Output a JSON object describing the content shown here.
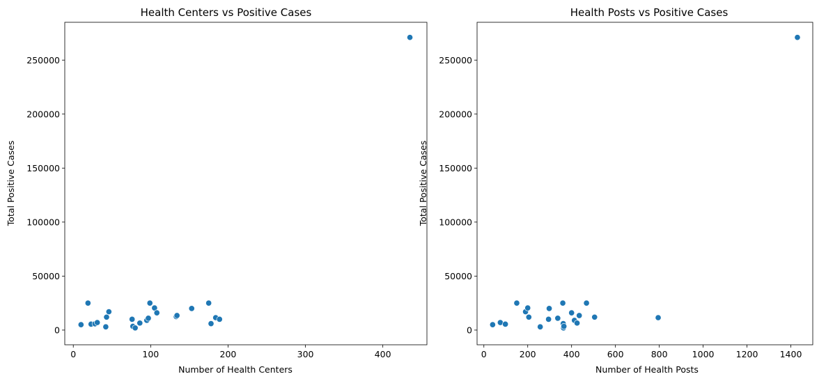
{
  "chart_data": [
    {
      "type": "scatter",
      "title": "Health Centers vs Positive Cases",
      "xlabel": "Number of Health Centers",
      "ylabel": "Total Positive Cases",
      "xlim": [
        -11,
        457
      ],
      "ylim": [
        -13600,
        285000
      ],
      "xticks": [
        0,
        100,
        200,
        300,
        400
      ],
      "yticks": [
        0,
        50000,
        100000,
        150000,
        200000,
        250000
      ],
      "grid": false,
      "color": "#1f77b4",
      "points": [
        {
          "x": 10,
          "y": 5000
        },
        {
          "x": 19,
          "y": 25000
        },
        {
          "x": 23,
          "y": 5500
        },
        {
          "x": 28,
          "y": 5800
        },
        {
          "x": 31,
          "y": 7000
        },
        {
          "x": 42,
          "y": 3000
        },
        {
          "x": 43,
          "y": 12000
        },
        {
          "x": 46,
          "y": 17000
        },
        {
          "x": 76,
          "y": 10000
        },
        {
          "x": 77,
          "y": 3500
        },
        {
          "x": 80,
          "y": 2000
        },
        {
          "x": 86,
          "y": 6500
        },
        {
          "x": 95,
          "y": 9000
        },
        {
          "x": 97,
          "y": 11000
        },
        {
          "x": 99,
          "y": 25000
        },
        {
          "x": 105,
          "y": 20500
        },
        {
          "x": 108,
          "y": 16000
        },
        {
          "x": 133,
          "y": 12500
        },
        {
          "x": 134,
          "y": 13500
        },
        {
          "x": 153,
          "y": 20000
        },
        {
          "x": 175,
          "y": 25000
        },
        {
          "x": 178,
          "y": 6000
        },
        {
          "x": 184,
          "y": 11500
        },
        {
          "x": 189,
          "y": 10000
        },
        {
          "x": 435,
          "y": 271000
        }
      ]
    },
    {
      "type": "scatter",
      "title": "Health Posts vs Positive Cases",
      "xlabel": "Number of Health Posts",
      "ylabel": "Total Positive Cases",
      "xlim": [
        -31,
        1500
      ],
      "ylim": [
        -13600,
        285000
      ],
      "xticks": [
        0,
        200,
        400,
        600,
        800,
        1000,
        1200,
        1400
      ],
      "yticks": [
        0,
        50000,
        100000,
        150000,
        200000,
        250000
      ],
      "grid": false,
      "color": "#1f77b4",
      "points": [
        {
          "x": 40,
          "y": 5000
        },
        {
          "x": 75,
          "y": 7000
        },
        {
          "x": 98,
          "y": 5500
        },
        {
          "x": 150,
          "y": 25000
        },
        {
          "x": 190,
          "y": 17000
        },
        {
          "x": 200,
          "y": 20500
        },
        {
          "x": 205,
          "y": 12000
        },
        {
          "x": 257,
          "y": 3000
        },
        {
          "x": 295,
          "y": 10000
        },
        {
          "x": 298,
          "y": 20000
        },
        {
          "x": 337,
          "y": 11000
        },
        {
          "x": 360,
          "y": 25000
        },
        {
          "x": 362,
          "y": 6000
        },
        {
          "x": 363,
          "y": 2000
        },
        {
          "x": 365,
          "y": 3500
        },
        {
          "x": 400,
          "y": 16000
        },
        {
          "x": 413,
          "y": 9000
        },
        {
          "x": 425,
          "y": 6500
        },
        {
          "x": 435,
          "y": 13500
        },
        {
          "x": 468,
          "y": 25000
        },
        {
          "x": 505,
          "y": 12000
        },
        {
          "x": 795,
          "y": 11500
        },
        {
          "x": 1430,
          "y": 271000
        }
      ]
    }
  ]
}
